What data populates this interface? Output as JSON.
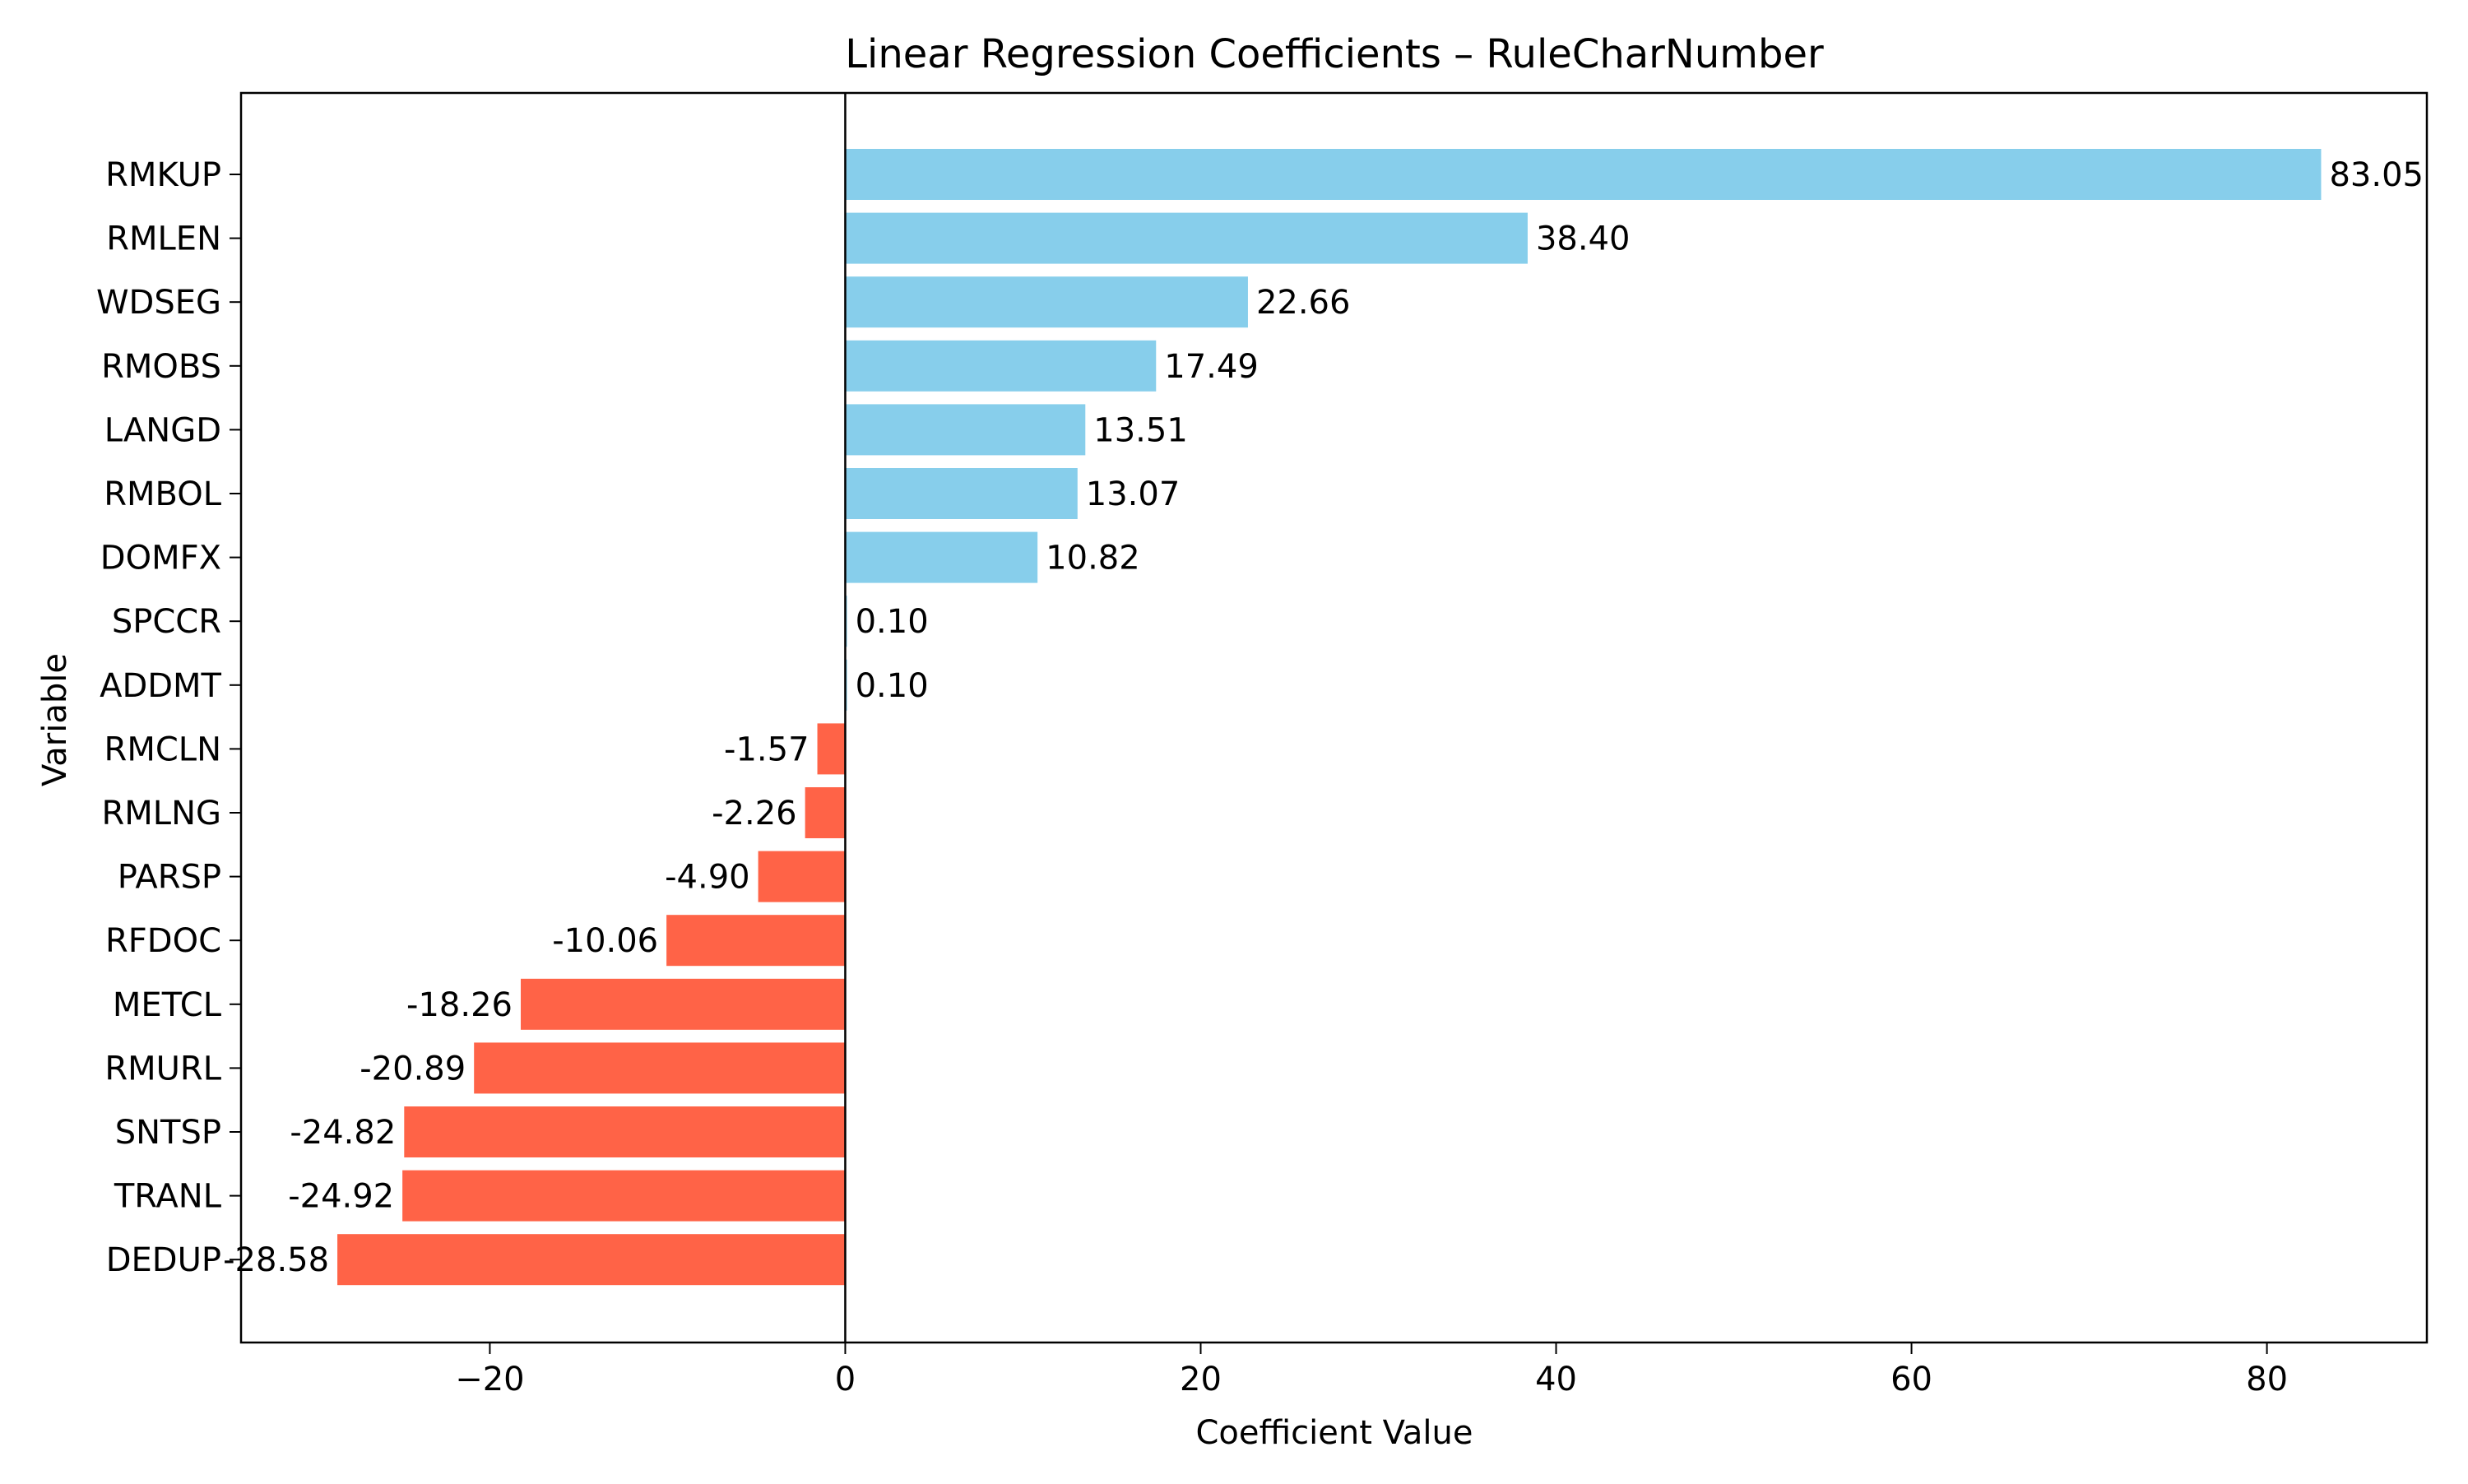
{
  "chart_data": {
    "type": "bar",
    "orientation": "horizontal",
    "title": "Linear Regression Coefficients – RuleCharNumber",
    "xlabel": "Coefficient Value",
    "ylabel": "Variable",
    "xlim": [
      -34,
      89
    ],
    "xticks": [
      -20,
      0,
      20,
      40,
      60,
      80
    ],
    "xtick_labels": [
      "−20",
      "0",
      "20",
      "40",
      "60",
      "80"
    ],
    "grid": false,
    "legend": "none",
    "colors": {
      "positive": "#87CEEB",
      "negative": "#FF6347",
      "zero_line": "#000000",
      "axes": "#000000"
    },
    "categories": [
      "RMKUP",
      "RMLEN",
      "WDSEG",
      "RMOBS",
      "LANGD",
      "RMBOL",
      "DOMFX",
      "SPCCR",
      "ADDMT",
      "RMCLN",
      "RMLNG",
      "PARSP",
      "RFDOC",
      "METCL",
      "RMURL",
      "SNTSP",
      "TRANL",
      "DEDUP"
    ],
    "values": [
      83.05,
      38.4,
      22.66,
      17.49,
      13.51,
      13.07,
      10.82,
      0.1,
      0.1,
      -1.57,
      -2.26,
      -4.9,
      -10.06,
      -18.26,
      -20.89,
      -24.82,
      -24.92,
      -28.58
    ],
    "value_labels": [
      "83.05",
      "38.40",
      "22.66",
      "17.49",
      "13.51",
      "13.07",
      "10.82",
      "0.10",
      "0.10",
      "-1.57",
      "-2.26",
      "-4.90",
      "-10.06",
      "-18.26",
      "-20.89",
      "-24.82",
      "-24.92",
      "-28.58"
    ]
  }
}
